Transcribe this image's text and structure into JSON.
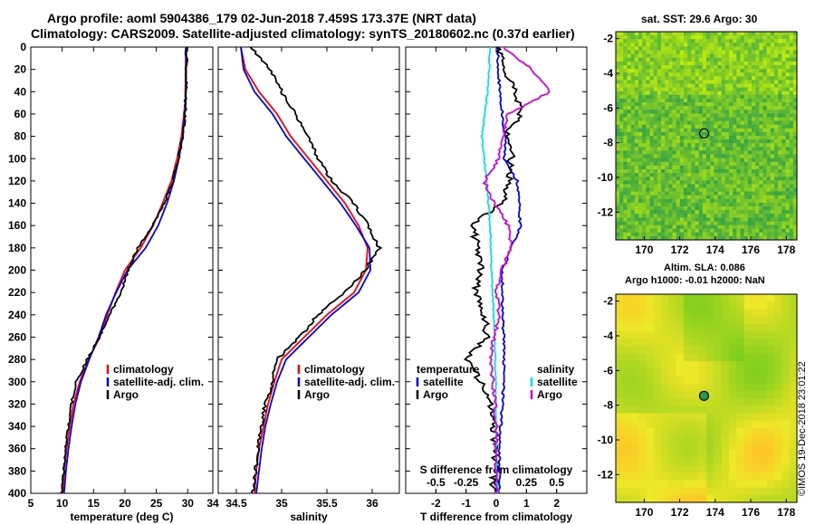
{
  "title_line1": "Argo profile: aoml 5904386_179 02-Jun-2018 7.459S 173.37E (NRT data)",
  "title_line2": "Climatology: CARS2009. Satellite-adjusted climatology: synTS_20180602.nc (0.37d earlier)",
  "sst_title": "sat. SST: 29.6 Argo: 30",
  "sla_title1": "Altim. SLA: 0.086",
  "sla_title2": "Argo h1000: -0.01 h2000: NaN",
  "credit": "©IMOS 19-Dec-2018 23:01:22",
  "colors": {
    "climatology": "#ff0000",
    "satellite": "#0000ff",
    "argo": "#000000",
    "sal_satellite": "#00e5e5",
    "sal_argo": "#dd00dd"
  },
  "chart_data": [
    {
      "type": "line",
      "xlabel": "temperature (deg C)",
      "ylabel": "",
      "xlim": [
        5,
        34
      ],
      "ylim": [
        400,
        0
      ],
      "xticks": [
        5,
        10,
        15,
        20,
        25,
        30
      ],
      "yticks": [
        0,
        20,
        40,
        60,
        80,
        100,
        120,
        140,
        160,
        180,
        200,
        220,
        240,
        260,
        280,
        300,
        320,
        340,
        360,
        380,
        400
      ],
      "legend": [
        "climatology",
        "satellite-adj. clim.",
        "Argo"
      ],
      "series": [
        {
          "name": "climatology",
          "depth": [
            0,
            50,
            80,
            100,
            120,
            140,
            160,
            180,
            200,
            220,
            240,
            260,
            280,
            300,
            320,
            340,
            360,
            380,
            400
          ],
          "values": [
            29.7,
            29.6,
            29.0,
            28.3,
            27.4,
            26.0,
            24.5,
            22.5,
            20.0,
            18.5,
            17.2,
            16.0,
            14.2,
            12.8,
            11.8,
            11.2,
            10.7,
            10.3,
            10.1
          ]
        },
        {
          "name": "satellite-adj. clim.",
          "depth": [
            0,
            50,
            80,
            100,
            120,
            140,
            160,
            180,
            200,
            220,
            240,
            260,
            280,
            300,
            320,
            340,
            360,
            380,
            400
          ],
          "values": [
            29.8,
            29.7,
            29.2,
            28.6,
            27.8,
            26.7,
            25.3,
            23.3,
            20.4,
            18.6,
            17.0,
            15.8,
            14.3,
            13.0,
            12.1,
            11.5,
            11.0,
            10.6,
            10.3
          ]
        },
        {
          "name": "Argo",
          "depth": [
            0,
            20,
            40,
            60,
            80,
            100,
            120,
            140,
            160,
            180,
            200,
            220,
            240,
            260,
            280,
            300,
            320,
            340,
            360,
            380,
            400
          ],
          "values": [
            29.8,
            29.8,
            29.7,
            29.6,
            29.2,
            28.5,
            27.6,
            26.3,
            24.4,
            22.0,
            20.5,
            19.4,
            17.6,
            15.9,
            14.0,
            12.2,
            11.5,
            11.0,
            10.5,
            10.2,
            9.9
          ]
        }
      ]
    },
    {
      "type": "line",
      "xlabel": "salinity",
      "xlim": [
        34.3,
        36.3
      ],
      "ylim": [
        400,
        0
      ],
      "xticks": [
        34.5,
        35,
        35.5,
        36
      ],
      "legend": [
        "climatology",
        "satellite-adj. clim.",
        "Argo"
      ],
      "series": [
        {
          "name": "climatology",
          "depth": [
            0,
            20,
            40,
            60,
            80,
            100,
            120,
            140,
            160,
            180,
            200,
            220,
            240,
            260,
            280,
            300,
            320,
            340,
            360,
            380,
            400
          ],
          "values": [
            34.55,
            34.6,
            34.75,
            34.95,
            35.1,
            35.3,
            35.5,
            35.7,
            35.85,
            35.95,
            35.93,
            35.8,
            35.5,
            35.25,
            35.0,
            34.92,
            34.85,
            34.8,
            34.75,
            34.72,
            34.7
          ]
        },
        {
          "name": "satellite-adj. clim.",
          "depth": [
            0,
            20,
            40,
            60,
            80,
            100,
            120,
            140,
            160,
            180,
            200,
            220,
            240,
            260,
            280,
            300,
            320,
            340,
            360,
            380,
            400
          ],
          "values": [
            34.55,
            34.58,
            34.7,
            34.9,
            35.05,
            35.25,
            35.45,
            35.65,
            35.82,
            35.97,
            35.98,
            35.85,
            35.55,
            35.3,
            35.05,
            34.95,
            34.88,
            34.82,
            34.78,
            34.75,
            34.72
          ]
        },
        {
          "name": "Argo",
          "depth": [
            0,
            20,
            40,
            60,
            80,
            100,
            120,
            140,
            160,
            180,
            200,
            220,
            240,
            260,
            280,
            300,
            320,
            340,
            360,
            380,
            400
          ],
          "values": [
            34.65,
            34.88,
            35.0,
            35.15,
            35.3,
            35.4,
            35.55,
            35.8,
            35.95,
            36.08,
            35.92,
            35.7,
            35.4,
            35.2,
            34.95,
            34.9,
            34.82,
            34.78,
            34.74,
            34.71,
            34.68
          ]
        }
      ]
    },
    {
      "type": "line",
      "xlabel": "T difference from climatology",
      "top_label": "S difference from climatology",
      "xlim": [
        -3,
        3
      ],
      "ylim": [
        400,
        0
      ],
      "xticks": [
        -2,
        -1,
        0,
        1,
        2
      ],
      "xtick_labels": [
        "-2",
        "-1",
        "0",
        "1",
        "2"
      ],
      "sticks": [
        -0.5,
        -0.25,
        0,
        0.25,
        0.5
      ],
      "stick_labels": [
        "-0.5",
        "-0.25",
        "0",
        "0.25",
        "0.5"
      ],
      "legend_temperature_title": "temperature",
      "legend_salinity_title": "salinity",
      "legend_temperature": [
        "satellite",
        "Argo"
      ],
      "legend_salinity": [
        "satellite",
        "Argo"
      ],
      "series": [
        {
          "name": "T satellite",
          "depth": [
            0,
            40,
            80,
            100,
            120,
            140,
            160,
            180,
            200,
            220,
            240,
            260,
            280,
            300,
            320,
            340,
            360,
            380,
            400
          ],
          "values": [
            0.05,
            0.1,
            0.3,
            0.25,
            0.7,
            0.75,
            0.8,
            0.5,
            0.2,
            0.2,
            0.2,
            0.25,
            0.25,
            0.25,
            0.2,
            0.15,
            0.1,
            0.1,
            0.1
          ]
        },
        {
          "name": "T Argo",
          "depth": [
            0,
            20,
            40,
            60,
            80,
            100,
            120,
            140,
            160,
            180,
            200,
            220,
            240,
            260,
            280,
            300,
            320,
            340,
            360,
            380,
            400
          ],
          "values": [
            0.1,
            0.3,
            0.6,
            0.8,
            0.3,
            0.5,
            0.4,
            0.2,
            -0.8,
            -0.6,
            -0.5,
            -0.7,
            -0.4,
            -0.3,
            -1.0,
            -0.5,
            -0.2,
            -0.1,
            0.0,
            -0.05,
            -0.1
          ]
        },
        {
          "name": "S satellite",
          "depth": [
            0,
            40,
            80,
            120,
            160,
            200,
            240,
            280,
            320,
            360,
            400
          ],
          "values": [
            -0.05,
            -0.07,
            -0.12,
            -0.08,
            -0.05,
            -0.04,
            -0.02,
            -0.01,
            0.0,
            0.0,
            0.01
          ]
        },
        {
          "name": "S Argo",
          "depth": [
            0,
            20,
            40,
            60,
            80,
            100,
            120,
            140,
            160,
            180,
            200,
            220,
            240,
            260,
            280,
            300,
            320,
            340,
            360,
            380,
            400
          ],
          "values": [
            0.05,
            0.3,
            0.45,
            0.1,
            0.05,
            0.02,
            -0.1,
            -0.02,
            0.1,
            0.12,
            0.05,
            0.0,
            0.03,
            -0.02,
            -0.05,
            -0.03,
            -0.01,
            0.0,
            0.0,
            0.0,
            0.0
          ]
        }
      ]
    },
    {
      "type": "heatmap",
      "title": "sat. SST: 29.6 Argo: 30",
      "xticks": [
        170,
        172,
        174,
        176,
        178
      ],
      "yticks": [
        -2,
        -4,
        -6,
        -8,
        -10,
        -12
      ],
      "xlim": [
        168.4,
        178.6
      ],
      "ylim": [
        -13.6,
        -1.6
      ],
      "marker": {
        "lon": 173.37,
        "lat": -7.459
      }
    },
    {
      "type": "heatmap",
      "title": "Altim. SLA: 0.086",
      "xticks": [
        170,
        172,
        174,
        176,
        178
      ],
      "yticks": [
        -2,
        -4,
        -6,
        -8,
        -10,
        -12
      ],
      "xlim": [
        168.4,
        178.6
      ],
      "ylim": [
        -13.6,
        -1.6
      ],
      "marker": {
        "lon": 173.37,
        "lat": -7.459
      }
    }
  ]
}
